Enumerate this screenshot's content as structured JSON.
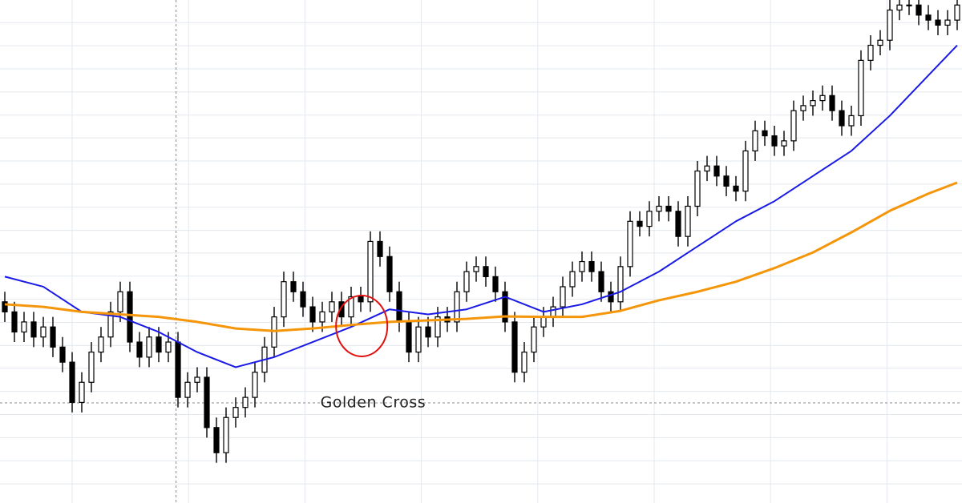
{
  "chart_data": {
    "type": "candlestick",
    "xlim": [
      -0.5,
      99.5
    ],
    "ylim": [
      0,
      100
    ],
    "grid": true,
    "xticks": [
      7,
      19.1,
      31.2,
      43.3,
      55.4,
      67.5,
      79.6,
      91.7
    ],
    "yticks": [
      3.8,
      8.4,
      13,
      17.6,
      22.2,
      26.8,
      31.3,
      35.9,
      40.5,
      45.1,
      49.7,
      54.2,
      58.8,
      63.4,
      68,
      72.6,
      77.1,
      81.7,
      86.3,
      90.9,
      95.5
    ],
    "up_color": "#ffffff",
    "down_color": "#000000",
    "open": [
      40,
      38,
      34,
      36,
      33,
      35,
      31,
      28,
      20,
      24,
      30,
      33,
      38,
      42,
      32,
      29,
      33,
      30,
      32,
      21,
      24,
      25,
      15,
      10,
      17,
      19,
      21,
      26,
      31,
      37,
      44,
      42,
      39,
      36,
      38,
      40,
      37,
      41,
      40,
      52,
      49,
      42,
      36,
      30,
      35,
      33,
      37,
      36,
      42,
      46,
      47,
      45,
      42,
      36,
      26,
      30,
      35,
      37,
      39,
      43,
      46,
      48,
      46,
      42,
      40,
      47,
      56,
      55,
      58,
      59,
      58,
      53,
      59,
      66,
      67,
      65,
      63,
      62,
      70,
      74,
      73,
      71,
      72,
      78,
      79,
      80,
      81,
      78,
      75,
      77,
      88,
      91,
      92,
      98,
      99,
      99,
      97,
      96,
      95,
      96
    ],
    "high": [
      42,
      40,
      38,
      38,
      37,
      37,
      33,
      30,
      26,
      32,
      35,
      40,
      44,
      44,
      34,
      35,
      35,
      34,
      34,
      26,
      27,
      27,
      17,
      19,
      21,
      23,
      28,
      33,
      39,
      46,
      46,
      44,
      41,
      40,
      42,
      42,
      43,
      43,
      54,
      54,
      51,
      44,
      38,
      37,
      37,
      39,
      39,
      44,
      48,
      49,
      49,
      47,
      44,
      38,
      32,
      37,
      39,
      41,
      45,
      48,
      50,
      50,
      48,
      44,
      49,
      58,
      58,
      60,
      61,
      61,
      60,
      61,
      68,
      69,
      69,
      67,
      65,
      72,
      76,
      76,
      75,
      74,
      80,
      81,
      82,
      83,
      83,
      80,
      79,
      90,
      93,
      94,
      100,
      101,
      101,
      101,
      99,
      98,
      98,
      101
    ],
    "low": [
      36,
      32,
      32,
      31,
      31,
      29,
      26,
      18,
      18,
      22,
      28,
      31,
      36,
      30,
      27,
      27,
      28,
      28,
      19,
      19,
      22,
      13,
      8,
      8,
      15,
      17,
      19,
      24,
      29,
      35,
      40,
      37,
      34,
      34,
      36,
      35,
      35,
      38,
      38,
      47,
      40,
      34,
      28,
      28,
      31,
      31,
      34,
      34,
      40,
      44,
      43,
      40,
      34,
      24,
      24,
      28,
      33,
      35,
      37,
      41,
      44,
      44,
      40,
      38,
      38,
      45,
      53,
      53,
      56,
      56,
      51,
      51,
      57,
      64,
      63,
      61,
      60,
      60,
      68,
      71,
      69,
      69,
      70,
      76,
      77,
      78,
      76,
      73,
      73,
      75,
      86,
      89,
      90,
      96,
      97,
      95,
      94,
      93,
      93,
      94
    ],
    "close": [
      38,
      34,
      36,
      33,
      35,
      31,
      28,
      20,
      24,
      30,
      33,
      38,
      42,
      32,
      29,
      33,
      30,
      32,
      21,
      24,
      25,
      15,
      10,
      17,
      19,
      21,
      26,
      31,
      37,
      44,
      42,
      39,
      36,
      38,
      40,
      37,
      41,
      40,
      52,
      49,
      42,
      36,
      30,
      35,
      33,
      37,
      36,
      42,
      46,
      47,
      45,
      42,
      36,
      26,
      30,
      35,
      37,
      39,
      43,
      46,
      48,
      46,
      42,
      40,
      47,
      56,
      55,
      58,
      59,
      58,
      53,
      59,
      66,
      67,
      65,
      63,
      62,
      70,
      74,
      73,
      71,
      72,
      78,
      79,
      80,
      81,
      78,
      75,
      77,
      88,
      91,
      92,
      98,
      99,
      99,
      97,
      96,
      95,
      96,
      99
    ],
    "lines": [
      {
        "color": "#1a1ae6",
        "x": [
          0,
          4,
          8,
          12,
          16,
          20,
          24,
          28,
          32,
          36,
          40,
          44,
          48,
          52,
          56,
          60,
          64,
          68,
          72,
          76,
          80,
          84,
          88,
          92,
          96,
          99
        ],
        "values": [
          45,
          43,
          38,
          37,
          34,
          30,
          27,
          29,
          32,
          35,
          38.5,
          37.5,
          38.5,
          41,
          38,
          39.5,
          42,
          46,
          51,
          56,
          60,
          65,
          70,
          77,
          85,
          91
        ]
      },
      {
        "color": "#f5960a",
        "x": [
          0,
          4,
          8,
          12,
          16,
          20,
          24,
          28,
          32,
          36,
          40,
          44,
          48,
          52,
          56,
          60,
          64,
          68,
          72,
          76,
          80,
          84,
          88,
          92,
          96,
          99
        ],
        "values": [
          39.5,
          39,
          38,
          37.5,
          37,
          36,
          34.7,
          34.2,
          34.7,
          35.4,
          36,
          36.3,
          36.6,
          37.1,
          37,
          37,
          38.2,
          40.3,
          42,
          44,
          46.7,
          49.8,
          53.8,
          58.1,
          61.5,
          63.7
        ]
      }
    ],
    "crosshair": {
      "x": 17.8,
      "y": 19.9
    },
    "highlight": {
      "x": 37.1,
      "y": 35.2,
      "color": "#e01010"
    },
    "annotation": {
      "text": "Golden Cross",
      "x": 32.8,
      "y": 19.9
    }
  }
}
